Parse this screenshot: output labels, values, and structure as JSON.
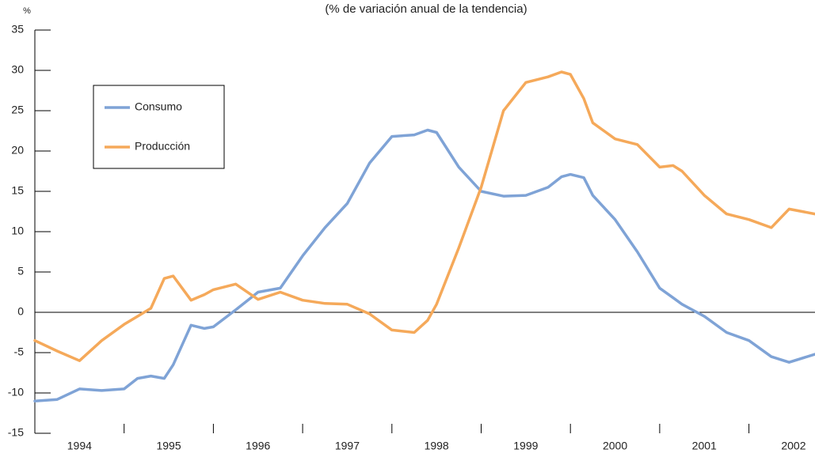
{
  "chart_data": {
    "type": "line",
    "title": "(% de variación anual de la tendencia)",
    "y_label": "%",
    "x": [
      1994.0,
      1994.25,
      1994.5,
      1994.75,
      1995.0,
      1995.15,
      1995.3,
      1995.45,
      1995.55,
      1995.75,
      1995.9,
      1996.0,
      1996.25,
      1996.5,
      1996.75,
      1997.0,
      1997.25,
      1997.5,
      1997.75,
      1998.0,
      1998.25,
      1998.4,
      1998.5,
      1998.75,
      1999.0,
      1999.25,
      1999.5,
      1999.75,
      1999.9,
      2000.0,
      2000.15,
      2000.25,
      2000.5,
      2000.75,
      2001.0,
      2001.15,
      2001.25,
      2001.5,
      2001.75,
      2002.0,
      2002.25,
      2002.45,
      2002.74
    ],
    "series": [
      {
        "name": "Consumo",
        "color": "#7fa3d6",
        "values": [
          -11,
          -10.8,
          -9.5,
          -9.7,
          -9.5,
          -8.2,
          -7.9,
          -8.2,
          -6.5,
          -1.6,
          -2.0,
          -1.8,
          0.3,
          2.5,
          3,
          7,
          10.5,
          13.5,
          18.5,
          21.8,
          22,
          22.6,
          22.3,
          18,
          15,
          14.4,
          14.5,
          15.5,
          16.8,
          17.1,
          16.7,
          14.5,
          11.5,
          7.5,
          3,
          1.8,
          1,
          -0.5,
          -2.5,
          -3.5,
          -5.5,
          -6.2,
          -5.2
        ]
      },
      {
        "name": "Producción",
        "color": "#f5a95a",
        "values": [
          -3.5,
          -4.8,
          -6,
          -3.5,
          -1.5,
          -0.5,
          0.5,
          4.2,
          4.5,
          1.5,
          2.2,
          2.8,
          3.5,
          1.6,
          2.5,
          1.5,
          1.1,
          1.0,
          -0.2,
          -2.2,
          -2.5,
          -1.0,
          1.0,
          8,
          15.5,
          25,
          28.5,
          29.2,
          29.8,
          29.5,
          26.5,
          23.5,
          21.5,
          20.8,
          18,
          18.2,
          17.5,
          14.5,
          12.2,
          11.5,
          10.5,
          12.8,
          12.2
        ]
      }
    ],
    "xlim": [
      1994.0,
      2002.74
    ],
    "xticks": [
      {
        "value": 1994.5,
        "label": "1994"
      },
      {
        "value": 1995.5,
        "label": "1995"
      },
      {
        "value": 1996.5,
        "label": "1996"
      },
      {
        "value": 1997.5,
        "label": "1997"
      },
      {
        "value": 1998.5,
        "label": "1998"
      },
      {
        "value": 1999.5,
        "label": "1999"
      },
      {
        "value": 2000.5,
        "label": "2000"
      },
      {
        "value": 2001.5,
        "label": "2001"
      },
      {
        "value": 2002.5,
        "label": "2002"
      }
    ],
    "ylim": [
      -15,
      35
    ],
    "yticks": [
      -15,
      -10,
      -5,
      0,
      5,
      10,
      15,
      20,
      25,
      30,
      35
    ],
    "legend": "upper left"
  }
}
